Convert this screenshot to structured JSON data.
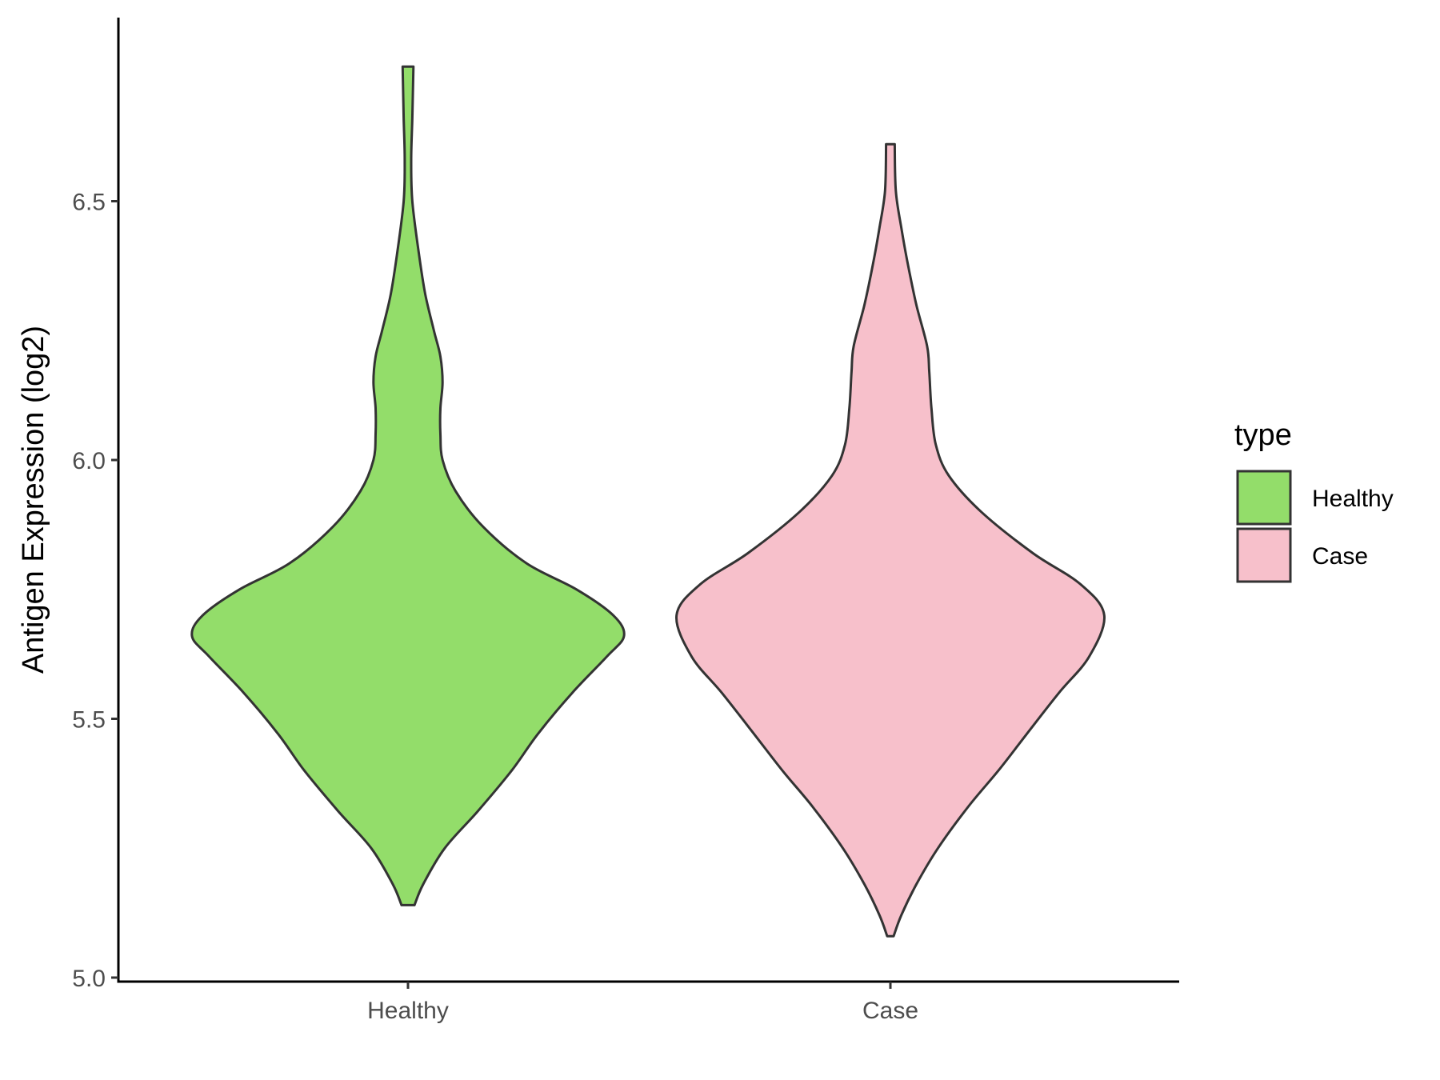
{
  "chart_data": {
    "type": "violin",
    "ylabel": "Antigen Expression (log2)",
    "xlabel": "",
    "ylim": [
      5.0,
      6.85
    ],
    "yticks": [
      "5.0",
      "5.5",
      "6.0",
      "6.5"
    ],
    "grid": false,
    "legend": {
      "title": "type",
      "position": "right",
      "entries": [
        {
          "label": "Healthy",
          "color": "#93DD6A"
        },
        {
          "label": "Case",
          "color": "#F7C0CB"
        }
      ]
    },
    "categories": [
      "Healthy",
      "Case"
    ],
    "series": [
      {
        "category": "Healthy",
        "color": "#93DD6A",
        "min": 5.14,
        "max": 6.76,
        "profile": [
          [
            5.14,
            0.03
          ],
          [
            5.18,
            0.07
          ],
          [
            5.25,
            0.17
          ],
          [
            5.32,
            0.32
          ],
          [
            5.4,
            0.48
          ],
          [
            5.47,
            0.6
          ],
          [
            5.55,
            0.76
          ],
          [
            5.62,
            0.92
          ],
          [
            5.66,
            1.0
          ],
          [
            5.7,
            0.95
          ],
          [
            5.75,
            0.78
          ],
          [
            5.8,
            0.55
          ],
          [
            5.87,
            0.35
          ],
          [
            5.94,
            0.22
          ],
          [
            6.0,
            0.16
          ],
          [
            6.05,
            0.15
          ],
          [
            6.1,
            0.15
          ],
          [
            6.15,
            0.16
          ],
          [
            6.2,
            0.15
          ],
          [
            6.25,
            0.12
          ],
          [
            6.32,
            0.08
          ],
          [
            6.4,
            0.05
          ],
          [
            6.5,
            0.02
          ],
          [
            6.58,
            0.015
          ],
          [
            6.66,
            0.02
          ],
          [
            6.76,
            0.025
          ]
        ]
      },
      {
        "category": "Case",
        "color": "#F7C0CB",
        "min": 5.08,
        "max": 6.61,
        "profile": [
          [
            5.08,
            0.015
          ],
          [
            5.12,
            0.05
          ],
          [
            5.18,
            0.12
          ],
          [
            5.25,
            0.22
          ],
          [
            5.33,
            0.36
          ],
          [
            5.4,
            0.5
          ],
          [
            5.47,
            0.63
          ],
          [
            5.55,
            0.78
          ],
          [
            5.62,
            0.92
          ],
          [
            5.7,
            0.99
          ],
          [
            5.76,
            0.88
          ],
          [
            5.82,
            0.66
          ],
          [
            5.9,
            0.42
          ],
          [
            5.97,
            0.27
          ],
          [
            6.03,
            0.21
          ],
          [
            6.1,
            0.19
          ],
          [
            6.17,
            0.18
          ],
          [
            6.22,
            0.17
          ],
          [
            6.3,
            0.12
          ],
          [
            6.38,
            0.08
          ],
          [
            6.45,
            0.05
          ],
          [
            6.52,
            0.025
          ],
          [
            6.61,
            0.02
          ]
        ]
      }
    ]
  }
}
